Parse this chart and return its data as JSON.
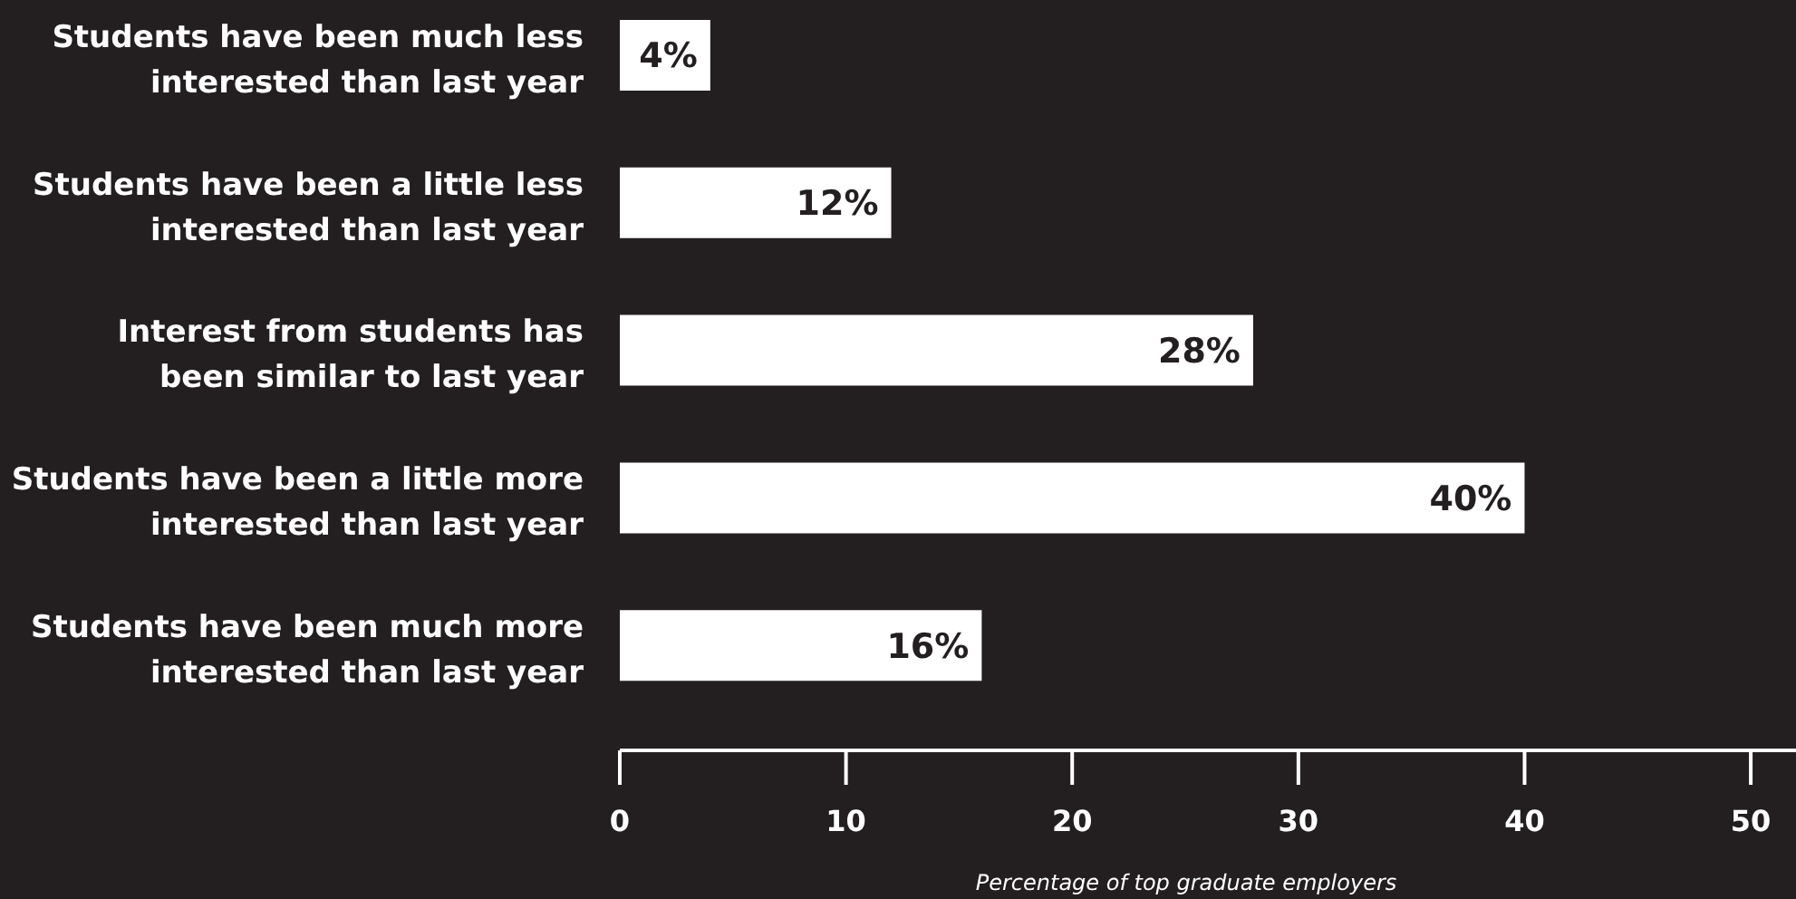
{
  "chart_data": {
    "type": "bar",
    "orientation": "horizontal",
    "categories": [
      "Students have been much less interested than last year",
      "Students have been a little less interested than last year",
      "Interest from students has been similar to last year",
      "Students have been a little more interested than last year",
      "Students have been much more interested than last year"
    ],
    "values": [
      4,
      12,
      28,
      40,
      16
    ],
    "color": "#ffffff",
    "value_labels": [
      "4%",
      "12%",
      "28%",
      "40%",
      "16%"
    ],
    "xlabel": "Percentage of top graduate employers",
    "xlim": [
      0,
      52
    ],
    "xticks": [
      0,
      10,
      20,
      30,
      40,
      50
    ]
  }
}
